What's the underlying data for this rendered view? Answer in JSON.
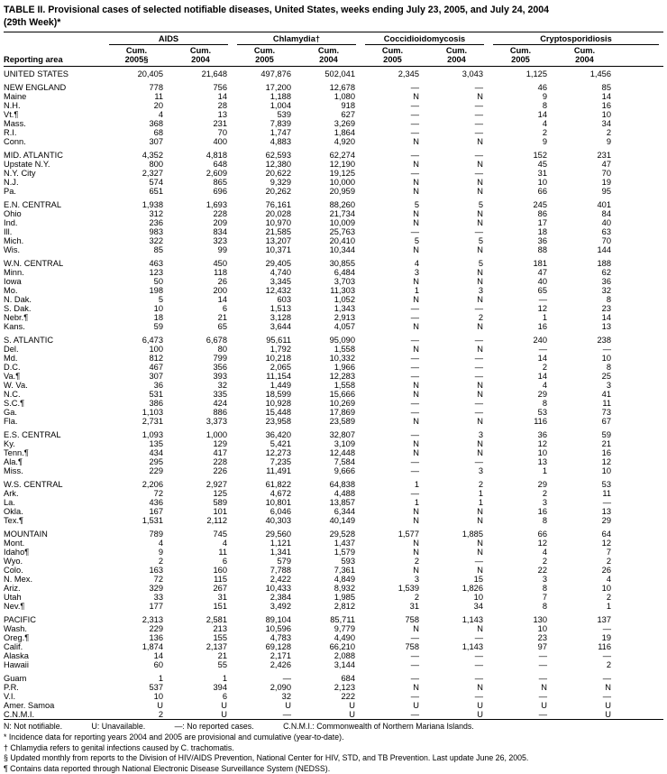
{
  "title": {
    "line1": "TABLE II. Provisional cases of selected notifiable diseases, United States, weeks ending July 23, 2005, and July 24, 2004",
    "line2": "(29th Week)*"
  },
  "table": {
    "area_header": "Reporting area",
    "groups": [
      {
        "label": "AIDS",
        "sub": [
          "Cum.\n2005§",
          "Cum.\n2004"
        ]
      },
      {
        "label": "Chlamydia†",
        "sub": [
          "Cum.\n2005",
          "Cum.\n2004"
        ]
      },
      {
        "label": "Coccidioidomycosis",
        "sub": [
          "Cum.\n2005",
          "Cum.\n2004"
        ]
      },
      {
        "label": "Cryptosporidiosis",
        "sub": [
          "Cum.\n2005",
          "Cum.\n2004"
        ]
      }
    ],
    "rows": [
      {
        "area": "UNITED STATES",
        "sec": true,
        "v": [
          "20,405",
          "21,648",
          "497,876",
          "502,041",
          "2,345",
          "3,043",
          "1,125",
          "1,456"
        ]
      },
      {
        "area": "NEW ENGLAND",
        "sec": true,
        "gap": true,
        "v": [
          "778",
          "756",
          "17,200",
          "12,678",
          "—",
          "—",
          "46",
          "85"
        ]
      },
      {
        "area": "Maine",
        "v": [
          "11",
          "14",
          "1,188",
          "1,080",
          "N",
          "N",
          "9",
          "14"
        ]
      },
      {
        "area": "N.H.",
        "v": [
          "20",
          "28",
          "1,004",
          "918",
          "—",
          "—",
          "8",
          "16"
        ]
      },
      {
        "area": "Vt.¶",
        "v": [
          "4",
          "13",
          "539",
          "627",
          "—",
          "—",
          "14",
          "10"
        ]
      },
      {
        "area": "Mass.",
        "v": [
          "368",
          "231",
          "7,839",
          "3,269",
          "—",
          "—",
          "4",
          "34"
        ]
      },
      {
        "area": "R.I.",
        "v": [
          "68",
          "70",
          "1,747",
          "1,864",
          "—",
          "—",
          "2",
          "2"
        ]
      },
      {
        "area": "Conn.",
        "v": [
          "307",
          "400",
          "4,883",
          "4,920",
          "N",
          "N",
          "9",
          "9"
        ]
      },
      {
        "area": "MID. ATLANTIC",
        "sec": true,
        "gap": true,
        "v": [
          "4,352",
          "4,818",
          "62,593",
          "62,274",
          "—",
          "—",
          "152",
          "231"
        ]
      },
      {
        "area": "Upstate N.Y.",
        "v": [
          "800",
          "648",
          "12,380",
          "12,190",
          "N",
          "N",
          "45",
          "47"
        ]
      },
      {
        "area": "N.Y. City",
        "v": [
          "2,327",
          "2,609",
          "20,622",
          "19,125",
          "—",
          "—",
          "31",
          "70"
        ]
      },
      {
        "area": "N.J.",
        "v": [
          "574",
          "865",
          "9,329",
          "10,000",
          "N",
          "N",
          "10",
          "19"
        ]
      },
      {
        "area": "Pa.",
        "v": [
          "651",
          "696",
          "20,262",
          "20,959",
          "N",
          "N",
          "66",
          "95"
        ]
      },
      {
        "area": "E.N. CENTRAL",
        "sec": true,
        "gap": true,
        "v": [
          "1,938",
          "1,693",
          "76,161",
          "88,260",
          "5",
          "5",
          "245",
          "401"
        ]
      },
      {
        "area": "Ohio",
        "v": [
          "312",
          "228",
          "20,028",
          "21,734",
          "N",
          "N",
          "86",
          "84"
        ]
      },
      {
        "area": "Ind.",
        "v": [
          "236",
          "209",
          "10,970",
          "10,009",
          "N",
          "N",
          "17",
          "40"
        ]
      },
      {
        "area": "Ill.",
        "v": [
          "983",
          "834",
          "21,585",
          "25,763",
          "—",
          "—",
          "18",
          "63"
        ]
      },
      {
        "area": "Mich.",
        "v": [
          "322",
          "323",
          "13,207",
          "20,410",
          "5",
          "5",
          "36",
          "70"
        ]
      },
      {
        "area": "Wis.",
        "v": [
          "85",
          "99",
          "10,371",
          "10,344",
          "N",
          "N",
          "88",
          "144"
        ]
      },
      {
        "area": "W.N. CENTRAL",
        "sec": true,
        "gap": true,
        "v": [
          "463",
          "450",
          "29,405",
          "30,855",
          "4",
          "5",
          "181",
          "188"
        ]
      },
      {
        "area": "Minn.",
        "v": [
          "123",
          "118",
          "4,740",
          "6,484",
          "3",
          "N",
          "47",
          "62"
        ]
      },
      {
        "area": "Iowa",
        "v": [
          "50",
          "26",
          "3,345",
          "3,703",
          "N",
          "N",
          "40",
          "36"
        ]
      },
      {
        "area": "Mo.",
        "v": [
          "198",
          "200",
          "12,432",
          "11,303",
          "1",
          "3",
          "65",
          "32"
        ]
      },
      {
        "area": "N. Dak.",
        "v": [
          "5",
          "14",
          "603",
          "1,052",
          "N",
          "N",
          "—",
          "8"
        ]
      },
      {
        "area": "S. Dak.",
        "v": [
          "10",
          "6",
          "1,513",
          "1,343",
          "—",
          "—",
          "12",
          "23"
        ]
      },
      {
        "area": "Nebr.¶",
        "v": [
          "18",
          "21",
          "3,128",
          "2,913",
          "—",
          "2",
          "1",
          "14"
        ]
      },
      {
        "area": "Kans.",
        "v": [
          "59",
          "65",
          "3,644",
          "4,057",
          "N",
          "N",
          "16",
          "13"
        ]
      },
      {
        "area": "S. ATLANTIC",
        "sec": true,
        "gap": true,
        "v": [
          "6,473",
          "6,678",
          "95,611",
          "95,090",
          "—",
          "—",
          "240",
          "238"
        ]
      },
      {
        "area": "Del.",
        "v": [
          "100",
          "80",
          "1,792",
          "1,558",
          "N",
          "N",
          "—",
          "—"
        ]
      },
      {
        "area": "Md.",
        "v": [
          "812",
          "799",
          "10,218",
          "10,332",
          "—",
          "—",
          "14",
          "10"
        ]
      },
      {
        "area": "D.C.",
        "v": [
          "467",
          "356",
          "2,065",
          "1,966",
          "—",
          "—",
          "2",
          "8"
        ]
      },
      {
        "area": "Va.¶",
        "v": [
          "307",
          "393",
          "11,154",
          "12,283",
          "—",
          "—",
          "14",
          "25"
        ]
      },
      {
        "area": "W. Va.",
        "v": [
          "36",
          "32",
          "1,449",
          "1,558",
          "N",
          "N",
          "4",
          "3"
        ]
      },
      {
        "area": "N.C.",
        "v": [
          "531",
          "335",
          "18,599",
          "15,666",
          "N",
          "N",
          "29",
          "41"
        ]
      },
      {
        "area": "S.C.¶",
        "v": [
          "386",
          "424",
          "10,928",
          "10,269",
          "—",
          "—",
          "8",
          "11"
        ]
      },
      {
        "area": "Ga.",
        "v": [
          "1,103",
          "886",
          "15,448",
          "17,869",
          "—",
          "—",
          "53",
          "73"
        ]
      },
      {
        "area": "Fla.",
        "v": [
          "2,731",
          "3,373",
          "23,958",
          "23,589",
          "N",
          "N",
          "116",
          "67"
        ]
      },
      {
        "area": "E.S. CENTRAL",
        "sec": true,
        "gap": true,
        "v": [
          "1,093",
          "1,000",
          "36,420",
          "32,807",
          "—",
          "3",
          "36",
          "59"
        ]
      },
      {
        "area": "Ky.",
        "v": [
          "135",
          "129",
          "5,421",
          "3,109",
          "N",
          "N",
          "12",
          "21"
        ]
      },
      {
        "area": "Tenn.¶",
        "v": [
          "434",
          "417",
          "12,273",
          "12,448",
          "N",
          "N",
          "10",
          "16"
        ]
      },
      {
        "area": "Ala.¶",
        "v": [
          "295",
          "228",
          "7,235",
          "7,584",
          "—",
          "—",
          "13",
          "12"
        ]
      },
      {
        "area": "Miss.",
        "v": [
          "229",
          "226",
          "11,491",
          "9,666",
          "—",
          "3",
          "1",
          "10"
        ]
      },
      {
        "area": "W.S. CENTRAL",
        "sec": true,
        "gap": true,
        "v": [
          "2,206",
          "2,927",
          "61,822",
          "64,838",
          "1",
          "2",
          "29",
          "53"
        ]
      },
      {
        "area": "Ark.",
        "v": [
          "72",
          "125",
          "4,672",
          "4,488",
          "—",
          "1",
          "2",
          "11"
        ]
      },
      {
        "area": "La.",
        "v": [
          "436",
          "589",
          "10,801",
          "13,857",
          "1",
          "1",
          "3",
          "—"
        ]
      },
      {
        "area": "Okla.",
        "v": [
          "167",
          "101",
          "6,046",
          "6,344",
          "N",
          "N",
          "16",
          "13"
        ]
      },
      {
        "area": "Tex.¶",
        "v": [
          "1,531",
          "2,112",
          "40,303",
          "40,149",
          "N",
          "N",
          "8",
          "29"
        ]
      },
      {
        "area": "MOUNTAIN",
        "sec": true,
        "gap": true,
        "v": [
          "789",
          "745",
          "29,560",
          "29,528",
          "1,577",
          "1,885",
          "66",
          "64"
        ]
      },
      {
        "area": "Mont.",
        "v": [
          "4",
          "4",
          "1,121",
          "1,437",
          "N",
          "N",
          "12",
          "12"
        ]
      },
      {
        "area": "Idaho¶",
        "v": [
          "9",
          "11",
          "1,341",
          "1,579",
          "N",
          "N",
          "4",
          "7"
        ]
      },
      {
        "area": "Wyo.",
        "v": [
          "2",
          "6",
          "579",
          "593",
          "2",
          "—",
          "2",
          "2"
        ]
      },
      {
        "area": "Colo.",
        "v": [
          "163",
          "160",
          "7,788",
          "7,361",
          "N",
          "N",
          "22",
          "26"
        ]
      },
      {
        "area": "N. Mex.",
        "v": [
          "72",
          "115",
          "2,422",
          "4,849",
          "3",
          "15",
          "3",
          "4"
        ]
      },
      {
        "area": "Ariz.",
        "v": [
          "329",
          "267",
          "10,433",
          "8,932",
          "1,539",
          "1,826",
          "8",
          "10"
        ]
      },
      {
        "area": "Utah",
        "v": [
          "33",
          "31",
          "2,384",
          "1,985",
          "2",
          "10",
          "7",
          "2"
        ]
      },
      {
        "area": "Nev.¶",
        "v": [
          "177",
          "151",
          "3,492",
          "2,812",
          "31",
          "34",
          "8",
          "1"
        ]
      },
      {
        "area": "PACIFIC",
        "sec": true,
        "gap": true,
        "v": [
          "2,313",
          "2,581",
          "89,104",
          "85,711",
          "758",
          "1,143",
          "130",
          "137"
        ]
      },
      {
        "area": "Wash.",
        "v": [
          "229",
          "213",
          "10,596",
          "9,779",
          "N",
          "N",
          "10",
          "—"
        ]
      },
      {
        "area": "Oreg.¶",
        "v": [
          "136",
          "155",
          "4,783",
          "4,490",
          "—",
          "—",
          "23",
          "19"
        ]
      },
      {
        "area": "Calif.",
        "v": [
          "1,874",
          "2,137",
          "69,128",
          "66,210",
          "758",
          "1,143",
          "97",
          "116"
        ]
      },
      {
        "area": "Alaska",
        "v": [
          "14",
          "21",
          "2,171",
          "2,088",
          "—",
          "—",
          "—",
          "—"
        ]
      },
      {
        "area": "Hawaii",
        "v": [
          "60",
          "55",
          "2,426",
          "3,144",
          "—",
          "—",
          "—",
          "2"
        ]
      },
      {
        "area": "Guam",
        "gap": true,
        "v": [
          "1",
          "1",
          "—",
          "684",
          "—",
          "—",
          "—",
          "—"
        ]
      },
      {
        "area": "P.R.",
        "v": [
          "537",
          "394",
          "2,090",
          "2,123",
          "N",
          "N",
          "N",
          "N"
        ]
      },
      {
        "area": "V.I.",
        "v": [
          "10",
          "6",
          "32",
          "222",
          "—",
          "—",
          "—",
          "—"
        ]
      },
      {
        "area": "Amer. Samoa",
        "v": [
          "U",
          "U",
          "U",
          "U",
          "U",
          "U",
          "U",
          "U"
        ]
      },
      {
        "area": "C.N.M.I.",
        "v": [
          "2",
          "U",
          "—",
          "U",
          "—",
          "U",
          "—",
          "U"
        ]
      }
    ]
  },
  "footnotes": {
    "legend": [
      "N: Not notifiable.",
      "U: Unavailable.",
      "—: No reported cases.",
      "C.N.M.I.: Commonwealth of Northern Mariana Islands."
    ],
    "notes": [
      "* Incidence data for reporting years 2004 and 2005 are provisional and cumulative (year-to-date).",
      "† Chlamydia refers to genital infections caused by C. trachomatis.",
      "§ Updated monthly from reports to the Division of HIV/AIDS Prevention, National Center for HIV, STD, and TB Prevention. Last update June 26, 2005.",
      "¶ Contains data reported through National Electronic Disease Surveillance System (NEDSS)."
    ]
  }
}
